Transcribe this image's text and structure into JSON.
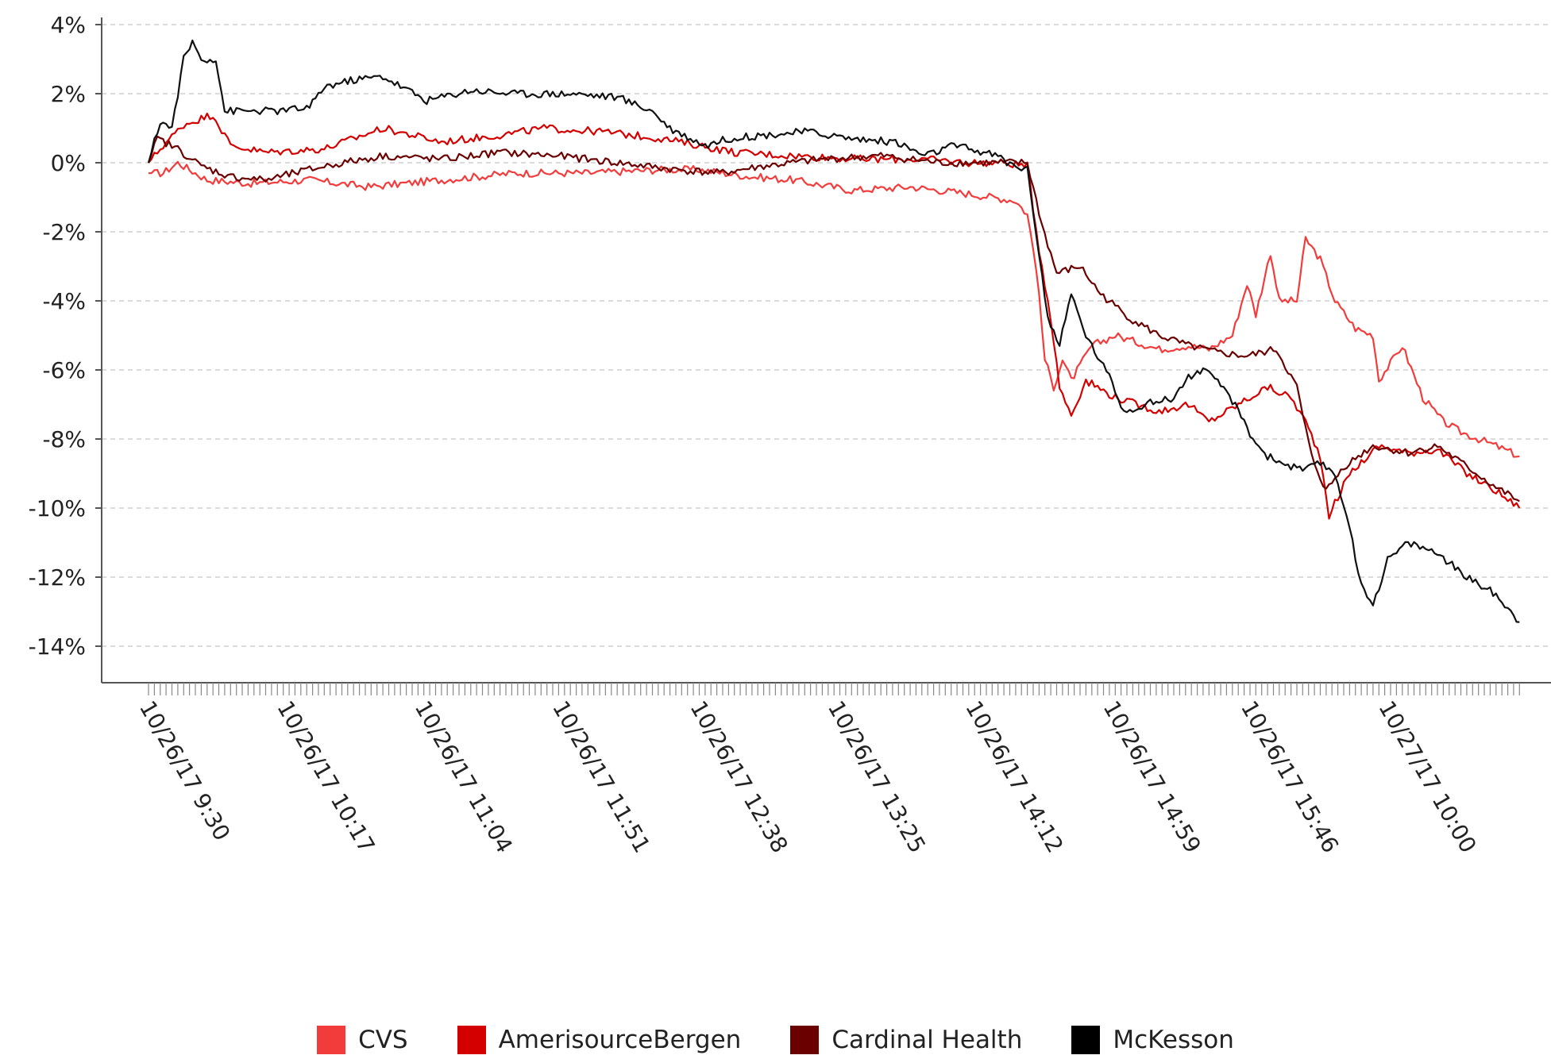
{
  "chart_data": {
    "type": "line",
    "title": "",
    "xlabel": "",
    "ylabel": "",
    "ylim": [
      -15.2,
      4.3
    ],
    "y_ticks": [
      "4%",
      "2%",
      "0%",
      "-2%",
      "-4%",
      "-6%",
      "-8%",
      "-10%",
      "-12%",
      "-14%"
    ],
    "y_tick_values": [
      4,
      2,
      0,
      -2,
      -4,
      -6,
      -8,
      -10,
      -12,
      -14
    ],
    "x_tick_labels": [
      "10/26/17 9:30",
      "10/26/17 10:17",
      "10/26/17 11:04",
      "10/26/17 11:51",
      "10/26/17 12:38",
      "10/26/17 13:25",
      "10/26/17 14:12",
      "10/26/17 14:59",
      "10/26/17 15:46",
      "10/27/17 10:00"
    ],
    "x_tick_index": [
      0,
      47,
      94,
      141,
      188,
      235,
      282,
      329,
      376,
      423
    ],
    "x_count": 470,
    "grid": "horizontal dashed",
    "legend_position": "bottom",
    "series": [
      {
        "name": "CVS",
        "color": "#f23c3c",
        "points": [
          [
            0,
            -0.3
          ],
          [
            5,
            -0.3
          ],
          [
            10,
            0.0
          ],
          [
            20,
            -0.5
          ],
          [
            35,
            -0.6
          ],
          [
            55,
            -0.5
          ],
          [
            75,
            -0.7
          ],
          [
            100,
            -0.5
          ],
          [
            125,
            -0.3
          ],
          [
            150,
            -0.3
          ],
          [
            175,
            -0.2
          ],
          [
            188,
            -0.2
          ],
          [
            205,
            -0.4
          ],
          [
            220,
            -0.5
          ],
          [
            240,
            -0.8
          ],
          [
            260,
            -0.7
          ],
          [
            280,
            -0.9
          ],
          [
            296,
            -1.1
          ],
          [
            300,
            -1.5
          ],
          [
            303,
            -3.0
          ],
          [
            306,
            -5.7
          ],
          [
            309,
            -6.5
          ],
          [
            312,
            -5.7
          ],
          [
            315,
            -6.3
          ],
          [
            322,
            -5.3
          ],
          [
            330,
            -5.0
          ],
          [
            345,
            -5.4
          ],
          [
            355,
            -5.3
          ],
          [
            362,
            -5.4
          ],
          [
            370,
            -5.0
          ],
          [
            375,
            -3.5
          ],
          [
            378,
            -4.4
          ],
          [
            383,
            -2.6
          ],
          [
            386,
            -4.0
          ],
          [
            392,
            -4.0
          ],
          [
            395,
            -2.2
          ],
          [
            400,
            -2.8
          ],
          [
            405,
            -4.0
          ],
          [
            412,
            -4.8
          ],
          [
            418,
            -5.0
          ],
          [
            420,
            -6.3
          ],
          [
            428,
            -5.3
          ],
          [
            435,
            -6.8
          ],
          [
            442,
            -7.5
          ],
          [
            448,
            -7.8
          ],
          [
            460,
            -8.2
          ],
          [
            468,
            -8.5
          ]
        ]
      },
      {
        "name": "AmerisourceBergen",
        "color": "#d40000",
        "points": [
          [
            0,
            0.0
          ],
          [
            5,
            0.5
          ],
          [
            12,
            1.1
          ],
          [
            22,
            1.4
          ],
          [
            28,
            0.5
          ],
          [
            40,
            0.3
          ],
          [
            60,
            0.4
          ],
          [
            80,
            1.0
          ],
          [
            100,
            0.6
          ],
          [
            120,
            0.8
          ],
          [
            135,
            1.0
          ],
          [
            155,
            0.9
          ],
          [
            175,
            0.7
          ],
          [
            188,
            0.5
          ],
          [
            200,
            0.3
          ],
          [
            220,
            0.2
          ],
          [
            245,
            0.1
          ],
          [
            265,
            0.1
          ],
          [
            280,
            0.0
          ],
          [
            292,
            0.0
          ],
          [
            300,
            -0.1
          ],
          [
            304,
            -2.5
          ],
          [
            308,
            -4.5
          ],
          [
            311,
            -6.5
          ],
          [
            315,
            -7.3
          ],
          [
            320,
            -6.3
          ],
          [
            330,
            -6.8
          ],
          [
            345,
            -7.2
          ],
          [
            355,
            -7.0
          ],
          [
            362,
            -7.5
          ],
          [
            372,
            -7.0
          ],
          [
            382,
            -6.5
          ],
          [
            390,
            -6.8
          ],
          [
            395,
            -7.5
          ],
          [
            400,
            -8.5
          ],
          [
            403,
            -10.2
          ],
          [
            410,
            -9.0
          ],
          [
            420,
            -8.2
          ],
          [
            430,
            -8.4
          ],
          [
            440,
            -8.3
          ],
          [
            450,
            -9.0
          ],
          [
            460,
            -9.5
          ],
          [
            468,
            -10.0
          ]
        ]
      },
      {
        "name": "Cardinal Health",
        "color": "#6b0000",
        "points": [
          [
            0,
            0.0
          ],
          [
            3,
            0.7
          ],
          [
            10,
            0.4
          ],
          [
            18,
            -0.1
          ],
          [
            28,
            -0.4
          ],
          [
            40,
            -0.5
          ],
          [
            60,
            -0.1
          ],
          [
            80,
            0.2
          ],
          [
            100,
            0.1
          ],
          [
            120,
            0.3
          ],
          [
            140,
            0.2
          ],
          [
            160,
            0.0
          ],
          [
            180,
            -0.2
          ],
          [
            195,
            -0.3
          ],
          [
            210,
            -0.1
          ],
          [
            230,
            0.1
          ],
          [
            250,
            0.2
          ],
          [
            270,
            0.0
          ],
          [
            290,
            0.0
          ],
          [
            300,
            0.0
          ],
          [
            305,
            -1.8
          ],
          [
            310,
            -3.2
          ],
          [
            318,
            -3.0
          ],
          [
            325,
            -3.8
          ],
          [
            335,
            -4.5
          ],
          [
            345,
            -5.0
          ],
          [
            355,
            -5.3
          ],
          [
            365,
            -5.5
          ],
          [
            375,
            -5.6
          ],
          [
            385,
            -5.4
          ],
          [
            392,
            -6.5
          ],
          [
            397,
            -8.5
          ],
          [
            402,
            -9.5
          ],
          [
            408,
            -8.8
          ],
          [
            418,
            -8.2
          ],
          [
            430,
            -8.4
          ],
          [
            440,
            -8.2
          ],
          [
            450,
            -8.8
          ],
          [
            460,
            -9.4
          ],
          [
            468,
            -9.8
          ]
        ]
      },
      {
        "name": "McKesson",
        "color": "#111111",
        "points": [
          [
            0,
            0.0
          ],
          [
            4,
            1.2
          ],
          [
            8,
            1.0
          ],
          [
            12,
            3.0
          ],
          [
            15,
            3.5
          ],
          [
            18,
            3.0
          ],
          [
            23,
            3.0
          ],
          [
            26,
            1.5
          ],
          [
            32,
            1.5
          ],
          [
            45,
            1.5
          ],
          [
            55,
            1.6
          ],
          [
            60,
            2.2
          ],
          [
            70,
            2.4
          ],
          [
            80,
            2.5
          ],
          [
            95,
            1.8
          ],
          [
            110,
            2.1
          ],
          [
            125,
            2.0
          ],
          [
            145,
            2.0
          ],
          [
            160,
            1.9
          ],
          [
            172,
            1.5
          ],
          [
            178,
            1.0
          ],
          [
            190,
            0.5
          ],
          [
            198,
            0.7
          ],
          [
            210,
            0.8
          ],
          [
            225,
            0.9
          ],
          [
            240,
            0.7
          ],
          [
            255,
            0.6
          ],
          [
            265,
            0.2
          ],
          [
            275,
            0.5
          ],
          [
            290,
            0.2
          ],
          [
            293,
            0.0
          ],
          [
            300,
            -0.2
          ],
          [
            303,
            -2.0
          ],
          [
            307,
            -4.5
          ],
          [
            311,
            -5.3
          ],
          [
            315,
            -3.8
          ],
          [
            320,
            -5.0
          ],
          [
            328,
            -6.2
          ],
          [
            333,
            -7.2
          ],
          [
            340,
            -7.0
          ],
          [
            350,
            -6.8
          ],
          [
            355,
            -6.2
          ],
          [
            360,
            -6.0
          ],
          [
            368,
            -6.6
          ],
          [
            372,
            -7.2
          ],
          [
            377,
            -8.0
          ],
          [
            382,
            -8.5
          ],
          [
            390,
            -8.8
          ],
          [
            395,
            -8.9
          ],
          [
            400,
            -8.7
          ],
          [
            405,
            -9.0
          ],
          [
            410,
            -10.5
          ],
          [
            413,
            -12.0
          ],
          [
            418,
            -12.8
          ],
          [
            423,
            -11.5
          ],
          [
            430,
            -11.0
          ],
          [
            440,
            -11.3
          ],
          [
            450,
            -12.0
          ],
          [
            460,
            -12.5
          ],
          [
            468,
            -13.3
          ]
        ]
      }
    ]
  }
}
